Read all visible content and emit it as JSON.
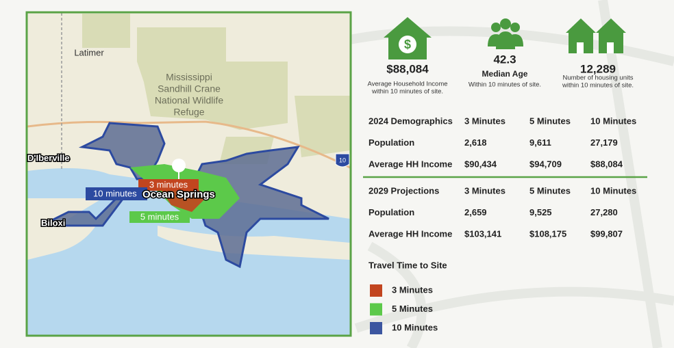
{
  "map": {
    "places": {
      "latimer": "Latimer",
      "diberville": "D'Iberville",
      "biloxi": "Biloxi",
      "ocean_springs": "Ocean Springs"
    },
    "refuge": [
      "Mississippi",
      "Sandhill Crane",
      "National Wildlife",
      "Refuge"
    ],
    "interstate": "10",
    "isochrone_labels": {
      "three": "3 minutes",
      "five": "5 minutes",
      "ten": "10 minutes"
    }
  },
  "stats": [
    {
      "value": "$88,084",
      "caption": [
        "Average Household Income",
        "within 10 minutes of site."
      ]
    },
    {
      "value": "42.3",
      "label": "Median Age",
      "caption": [
        "Within 10 minutes of site."
      ]
    },
    {
      "value": "12,289",
      "caption": [
        "Number of housing units",
        "within 10 minutes of site."
      ]
    }
  ],
  "tables": [
    {
      "header": [
        "2024 Demographics",
        "3 Minutes",
        "5 Minutes",
        "10 Minutes"
      ],
      "rows": [
        [
          "Population",
          "2,618",
          "9,611",
          "27,179"
        ],
        [
          "Average HH Income",
          "$90,434",
          "$94,709",
          "$88,084"
        ]
      ]
    },
    {
      "header": [
        "2029 Projections",
        "3 Minutes",
        "5 Minutes",
        "10 Minutes"
      ],
      "rows": [
        [
          "Population",
          "2,659",
          "9,525",
          "27,280"
        ],
        [
          "Average HH Income",
          "$103,141",
          "$108,175",
          "$99,807"
        ]
      ]
    }
  ],
  "legend": {
    "title": "Travel Time to Site",
    "items": [
      {
        "label": "3 Minutes",
        "color": "#c2451f"
      },
      {
        "label": "5 Minutes",
        "color": "#5cc94a"
      },
      {
        "label": "10 Minutes",
        "color": "#3c56a0"
      }
    ]
  }
}
